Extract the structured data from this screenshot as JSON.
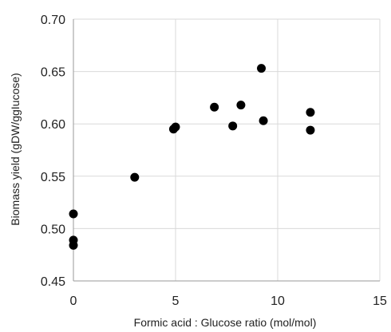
{
  "chart_data": {
    "type": "scatter",
    "xlabel": "Formic acid : Glucose ratio (mol/mol)",
    "ylabel": "Biomass yield (gDW/ggIucose)",
    "xlim": [
      0,
      15
    ],
    "ylim": [
      0.45,
      0.7
    ],
    "x_ticks": [
      "0",
      "5",
      "10",
      "15"
    ],
    "y_ticks": [
      "0.45",
      "0.50",
      "0.55",
      "0.60",
      "0.65",
      "0.70"
    ],
    "grid": "vertical and horizontal",
    "point_color": "#000000",
    "series": [
      {
        "points": [
          {
            "x": 0.0,
            "y": 0.514
          },
          {
            "x": 0.0,
            "y": 0.489
          },
          {
            "x": 0.0,
            "y": 0.484
          },
          {
            "x": 3.0,
            "y": 0.549
          },
          {
            "x": 4.9,
            "y": 0.595
          },
          {
            "x": 5.0,
            "y": 0.597
          },
          {
            "x": 6.9,
            "y": 0.616
          },
          {
            "x": 7.8,
            "y": 0.598
          },
          {
            "x": 8.2,
            "y": 0.618
          },
          {
            "x": 9.2,
            "y": 0.653
          },
          {
            "x": 9.3,
            "y": 0.603
          },
          {
            "x": 11.6,
            "y": 0.611
          },
          {
            "x": 11.6,
            "y": 0.594
          }
        ]
      }
    ]
  }
}
